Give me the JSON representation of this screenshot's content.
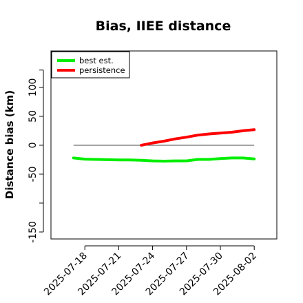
{
  "chart_data": {
    "type": "line",
    "title": "Bias, IIEE distance",
    "xlabel": "",
    "ylabel": "Distance bias (km)",
    "x_ticks": [
      "2025-07-18",
      "2025-07-21",
      "2025-07-24",
      "2025-07-27",
      "2025-07-30",
      "2025-08-02"
    ],
    "y_ticks": [
      -150,
      -50,
      0,
      50,
      100
    ],
    "y_tick_labels": [
      "-150",
      "-50",
      "0",
      "50",
      "100"
    ],
    "xlim": [
      "2025-07-15",
      "2025-08-04"
    ],
    "ylim": [
      -162,
      163
    ],
    "reference_line": {
      "y": 0,
      "x_start": "2025-07-17",
      "x_end": "2025-08-02",
      "color": "#555555"
    },
    "legend_position": "top-left",
    "series": [
      {
        "name": "best est.",
        "color": "#00ee00",
        "points": [
          [
            "2025-07-17",
            -22
          ],
          [
            "2025-07-18",
            -24
          ],
          [
            "2025-07-19",
            -24.5
          ],
          [
            "2025-07-20",
            -25
          ],
          [
            "2025-07-21",
            -25.5
          ],
          [
            "2025-07-22",
            -25.5
          ],
          [
            "2025-07-23",
            -26
          ],
          [
            "2025-07-24",
            -27
          ],
          [
            "2025-07-25",
            -27.5
          ],
          [
            "2025-07-26",
            -27
          ],
          [
            "2025-07-27",
            -27
          ],
          [
            "2025-07-28",
            -24.5
          ],
          [
            "2025-07-29",
            -24.5
          ],
          [
            "2025-07-30",
            -23
          ],
          [
            "2025-07-31",
            -22
          ],
          [
            "2025-08-01",
            -22
          ],
          [
            "2025-08-02",
            -23.5
          ]
        ]
      },
      {
        "name": "persistence",
        "color": "#ff0000",
        "points": [
          [
            "2025-07-23",
            0
          ],
          [
            "2025-07-24",
            4
          ],
          [
            "2025-07-25",
            7
          ],
          [
            "2025-07-26",
            11
          ],
          [
            "2025-07-27",
            14
          ],
          [
            "2025-07-28",
            17.5
          ],
          [
            "2025-07-29",
            19.5
          ],
          [
            "2025-07-30",
            21
          ],
          [
            "2025-07-31",
            22.5
          ],
          [
            "2025-08-01",
            25
          ],
          [
            "2025-08-02",
            27
          ]
        ]
      }
    ]
  }
}
